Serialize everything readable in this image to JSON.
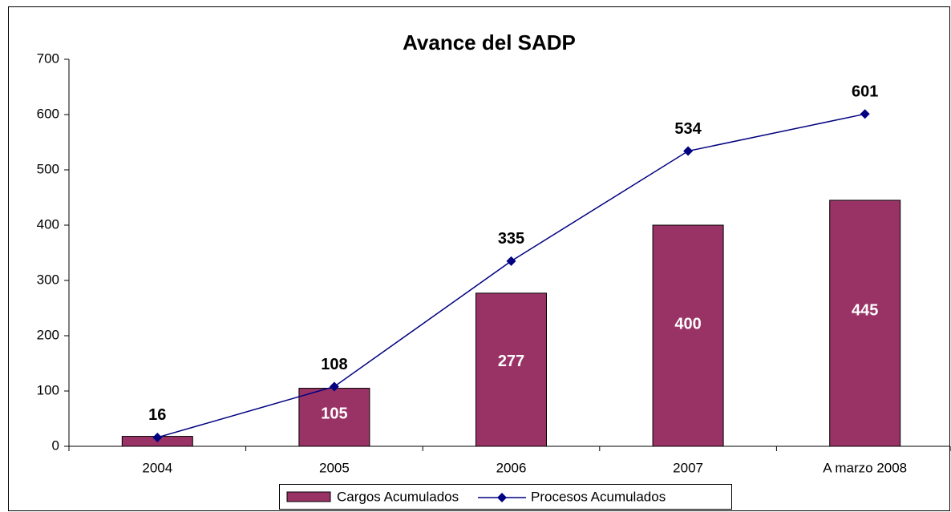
{
  "chart_data": {
    "type": "bar",
    "title": "Avance del SADP",
    "categories": [
      "2004",
      "2005",
      "2006",
      "2007",
      "A marzo 2008"
    ],
    "series": [
      {
        "name": "Cargos Acumulados",
        "type": "bar",
        "color": "#993366",
        "values": [
          18,
          105,
          277,
          400,
          445
        ],
        "value_labels": [
          null,
          "105",
          "277",
          "400",
          "445"
        ]
      },
      {
        "name": "Procesos Acumulados",
        "type": "line",
        "color": "#000080",
        "values": [
          16,
          108,
          335,
          534,
          601
        ]
      }
    ],
    "ylim": [
      0,
      700
    ],
    "yticks": [
      0,
      100,
      200,
      300,
      400,
      500,
      600,
      700
    ],
    "legend": "bottom"
  }
}
